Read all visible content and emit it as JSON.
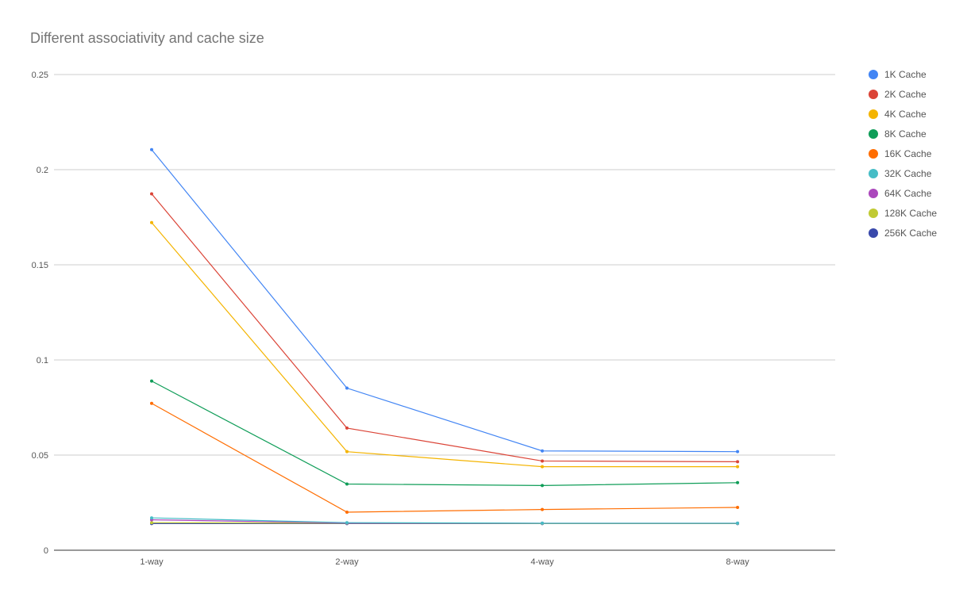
{
  "chart_data": {
    "type": "line",
    "title": "Different associativity and cache size",
    "xlabel": "",
    "ylabel": "",
    "categories": [
      "1-way",
      "2-way",
      "4-way",
      "8-way"
    ],
    "ylim": [
      0,
      0.25
    ],
    "yticks": [
      0,
      0.05,
      0.1,
      0.15,
      0.2,
      0.25
    ],
    "ytick_labels": [
      "0",
      "0.05",
      "0.1",
      "0.15",
      "0.2",
      "0.25"
    ],
    "grid": true,
    "legend_position": "right",
    "series": [
      {
        "name": "1K Cache",
        "color": "#4285f4",
        "values": [
          0.2105,
          0.0852,
          0.0522,
          0.0518
        ]
      },
      {
        "name": "2K Cache",
        "color": "#db4437",
        "values": [
          0.1873,
          0.0642,
          0.0469,
          0.0465
        ]
      },
      {
        "name": "4K Cache",
        "color": "#f4b400",
        "values": [
          0.1722,
          0.0518,
          0.0439,
          0.0439
        ]
      },
      {
        "name": "8K Cache",
        "color": "#0f9d58",
        "values": [
          0.0889,
          0.0348,
          0.034,
          0.0355
        ]
      },
      {
        "name": "16K Cache",
        "color": "#ff6d00",
        "values": [
          0.0772,
          0.02,
          0.0214,
          0.0225
        ]
      },
      {
        "name": "32K Cache",
        "color": "#46bdc6",
        "values": [
          0.017,
          0.0145,
          0.0142,
          0.0142
        ]
      },
      {
        "name": "64K Cache",
        "color": "#ab47bc",
        "values": [
          0.016,
          0.0143,
          0.0142,
          0.0142
        ]
      },
      {
        "name": "128K Cache",
        "color": "#c0ca33",
        "values": [
          0.0145,
          0.0142,
          0.0141,
          0.0141
        ]
      },
      {
        "name": "256K Cache",
        "color": "#3949ab",
        "values": [
          0.014,
          0.014,
          0.014,
          0.014
        ]
      }
    ]
  }
}
